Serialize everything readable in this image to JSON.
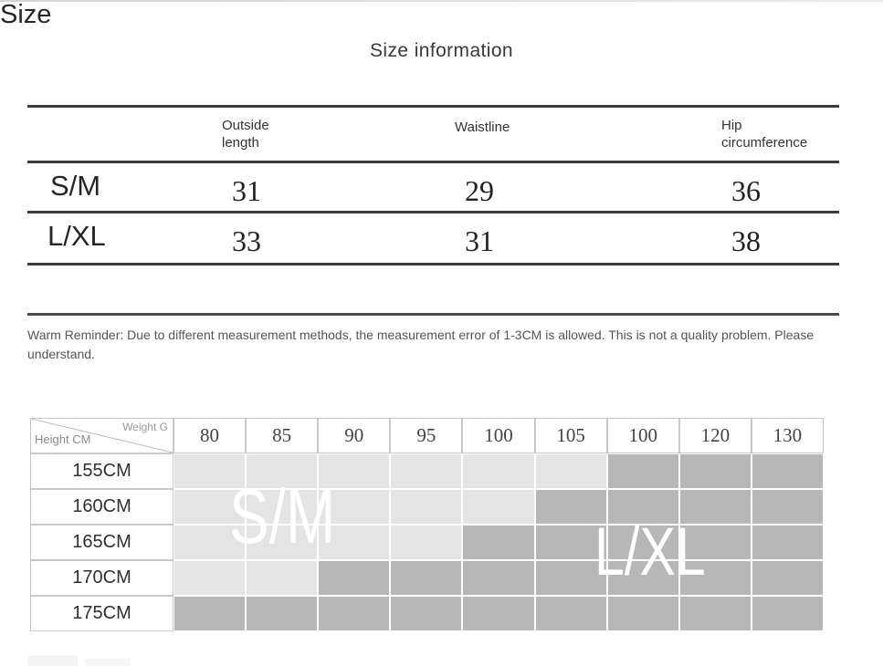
{
  "title": "Size information",
  "size_table": {
    "header": {
      "size": "Size",
      "outside_length": "Outside length",
      "waistline": "Waistline",
      "hip_circumference": "Hip circumference"
    },
    "rows": [
      {
        "size": "S/M",
        "outside_length": "31",
        "waistline": "29",
        "hip_circumference": "36"
      },
      {
        "size": "L/XL",
        "outside_length": "33",
        "waistline": "31",
        "hip_circumference": "38"
      }
    ]
  },
  "reminder": "Warm Reminder: Due to different measurement methods, the measurement error of 1-3CM is allowed. This is not a quality problem. Please understand.",
  "fit_chart": {
    "type": "heatmap",
    "corner": {
      "weight_label": "Weight G",
      "height_label": "Height CM"
    },
    "weights": [
      "80",
      "85",
      "90",
      "95",
      "100",
      "105",
      "100",
      "120",
      "130"
    ],
    "heights": [
      "155CM",
      "160CM",
      "165CM",
      "170CM",
      "175CM"
    ],
    "sm_cells_per_row": [
      6,
      5,
      4,
      2,
      0
    ],
    "zone_labels": {
      "sm": "S/M",
      "lxl": "L/XL"
    },
    "colors": {
      "sm_zone": "#e4e4e4",
      "lxl_zone": "#b7b7b7",
      "grid_border": "#c8c8c8",
      "zone_text": "#ffffff"
    }
  }
}
